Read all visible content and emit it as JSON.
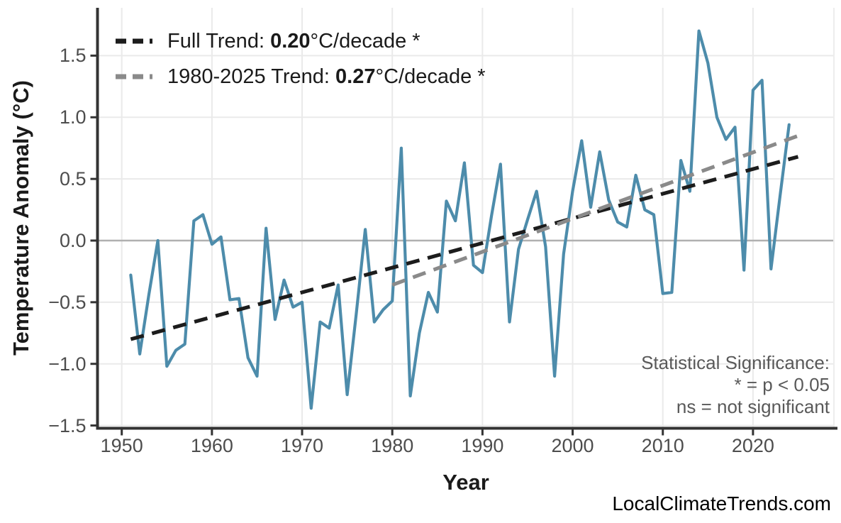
{
  "page": {
    "background": "#ffffff",
    "watermark": "LocalClimateTrends.com"
  },
  "axes": {
    "y_title": "Temperature Anomaly (°C)",
    "x_title": "Year",
    "y_tick_labels": [
      "1.5",
      "1.0",
      "0.5",
      "0.0",
      "−0.5",
      "−1.0",
      "−1.5"
    ],
    "y_tick_values": [
      1.5,
      1.0,
      0.5,
      0.0,
      -0.5,
      -1.0,
      -1.5
    ],
    "x_tick_labels": [
      "1950",
      "1960",
      "1970",
      "1980",
      "1990",
      "2000",
      "2010",
      "2020"
    ],
    "x_tick_values": [
      1950,
      1960,
      1970,
      1980,
      1990,
      2000,
      2010,
      2020
    ]
  },
  "legend": {
    "items": [
      {
        "prefix": "Full Trend: ",
        "value": "0.20",
        "suffix": "°C/decade *",
        "color": "#1c1c1c"
      },
      {
        "prefix": "1980-2025 Trend: ",
        "value": "0.27",
        "suffix": "°C/decade *",
        "color": "#8a8a8a"
      }
    ]
  },
  "annotation": {
    "lines": [
      "Statistical Significance:",
      "* = p < 0.05",
      "ns = not significant"
    ],
    "color": "#595959"
  },
  "chart_data": {
    "type": "line",
    "title": "",
    "xlabel": "Year",
    "ylabel": "Temperature Anomaly (°C)",
    "xlim": [
      1947.3,
      2029
    ],
    "ylim": [
      -1.52,
      1.89
    ],
    "grid": {
      "horizontal_at": [
        1.5,
        1.0,
        0.5,
        0.0,
        -0.5,
        -1.0,
        -1.5
      ],
      "vertical_at": [
        1950,
        1960,
        1970,
        1980,
        1990,
        2000,
        2010,
        2020
      ]
    },
    "zero_line": 0.0,
    "x": [
      1951,
      1952,
      1953,
      1954,
      1955,
      1956,
      1957,
      1958,
      1959,
      1960,
      1961,
      1962,
      1963,
      1964,
      1965,
      1966,
      1967,
      1968,
      1969,
      1970,
      1971,
      1972,
      1973,
      1974,
      1975,
      1976,
      1977,
      1978,
      1979,
      1980,
      1981,
      1982,
      1983,
      1984,
      1985,
      1986,
      1987,
      1988,
      1989,
      1990,
      1991,
      1992,
      1993,
      1994,
      1995,
      1996,
      1997,
      1998,
      1999,
      2000,
      2001,
      2002,
      2003,
      2004,
      2005,
      2006,
      2007,
      2008,
      2009,
      2010,
      2011,
      2012,
      2013,
      2014,
      2015,
      2016,
      2017,
      2018,
      2019,
      2020,
      2021,
      2022,
      2023,
      2024
    ],
    "series": [
      {
        "name": "temperature_anomaly",
        "style": "solid",
        "color": "#4d8cab",
        "values": [
          -0.28,
          -0.92,
          -0.44,
          0.0,
          -1.02,
          -0.89,
          -0.84,
          0.16,
          0.21,
          -0.03,
          0.03,
          -0.48,
          -0.47,
          -0.95,
          -1.1,
          0.1,
          -0.64,
          -0.32,
          -0.54,
          -0.5,
          -1.36,
          -0.66,
          -0.71,
          -0.36,
          -1.25,
          -0.6,
          0.09,
          -0.66,
          -0.56,
          -0.49,
          0.75,
          -1.26,
          -0.75,
          -0.42,
          -0.58,
          0.32,
          0.16,
          0.63,
          -0.2,
          -0.26,
          0.2,
          0.62,
          -0.66,
          -0.07,
          0.17,
          0.4,
          -0.05,
          -1.1,
          -0.11,
          0.4,
          0.81,
          0.27,
          0.72,
          0.33,
          0.15,
          0.11,
          0.53,
          0.25,
          0.21,
          -0.43,
          -0.42,
          0.65,
          0.4,
          1.7,
          1.44,
          1.0,
          0.82,
          0.92,
          -0.24,
          1.22,
          1.3,
          -0.23,
          0.36,
          0.94
        ]
      },
      {
        "name": "full_trend",
        "style": "dashed",
        "color": "#1c1c1c",
        "label": "Full Trend: 0.20°C/decade *",
        "slope_per_decade": 0.2,
        "x": [
          1951,
          2025
        ],
        "values": [
          -0.8,
          0.68
        ]
      },
      {
        "name": "trend_1980_2025",
        "style": "dashed",
        "color": "#8a8a8a",
        "label": "1980-2025 Trend: 0.27°C/decade *",
        "slope_per_decade": 0.27,
        "x": [
          1980,
          2025
        ],
        "values": [
          -0.36,
          0.85
        ]
      }
    ]
  }
}
